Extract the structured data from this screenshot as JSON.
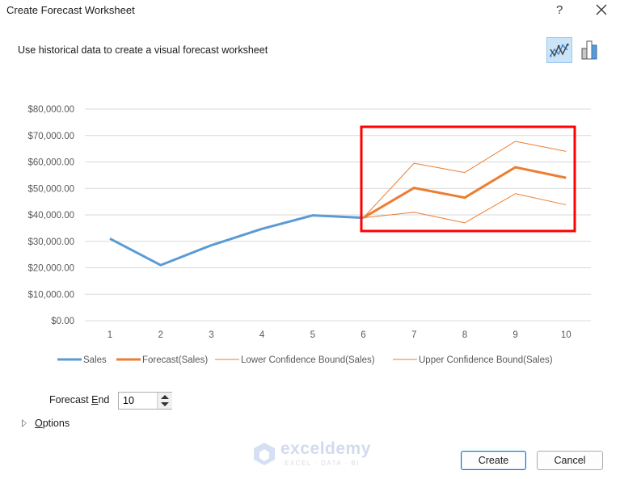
{
  "dialog": {
    "title": "Create Forecast Worksheet",
    "help_label": "?",
    "close_icon": "close-icon",
    "subtitle": "Use historical data to create a visual forecast worksheet",
    "chart_type_buttons": [
      {
        "name": "line-chart",
        "icon": "line-chart-icon",
        "selected": true
      },
      {
        "name": "column-chart",
        "icon": "column-chart-icon",
        "selected": false
      }
    ]
  },
  "forecast_end": {
    "label_pre": "Forecast ",
    "label_accel": "E",
    "label_post": "nd",
    "value": "10"
  },
  "options": {
    "label_accel": "O",
    "label_rest": "ptions"
  },
  "buttons": {
    "create": "Create",
    "cancel": "Cancel"
  },
  "watermark": {
    "name": "exceldemy",
    "tagline": "EXCEL · DATA · BI"
  },
  "highlight_color": "#ff0000",
  "chart_data": {
    "type": "line",
    "title": "",
    "xlabel": "",
    "ylabel": "",
    "x": [
      1,
      2,
      3,
      4,
      5,
      6,
      7,
      8,
      9,
      10
    ],
    "ylim": [
      0,
      80000
    ],
    "yticks": [
      "$0.00",
      "$10,000.00",
      "$20,000.00",
      "$30,000.00",
      "$40,000.00",
      "$50,000.00",
      "$60,000.00",
      "$70,000.00",
      "$80,000.00"
    ],
    "grid": true,
    "legend_position": "bottom",
    "series": [
      {
        "name": "Sales",
        "color": "#5b9bd5",
        "width": 3,
        "values": [
          31000,
          21000,
          28500,
          34700,
          39800,
          38900,
          null,
          null,
          null,
          null
        ]
      },
      {
        "name": "Forecast(Sales)",
        "color": "#ed7d31",
        "width": 3,
        "values": [
          null,
          null,
          null,
          null,
          null,
          38900,
          50200,
          46500,
          58000,
          54000
        ]
      },
      {
        "name": "Lower Confidence Bound(Sales)",
        "color": "#ed7d31",
        "width": 1,
        "values": [
          null,
          null,
          null,
          null,
          null,
          38900,
          41000,
          37000,
          48000,
          43800
        ]
      },
      {
        "name": "Upper Confidence Bound(Sales)",
        "color": "#ed7d31",
        "width": 1,
        "values": [
          null,
          null,
          null,
          null,
          null,
          38900,
          59500,
          56000,
          67800,
          64000
        ]
      }
    ],
    "annotations": [
      {
        "type": "rectangle",
        "color": "#ff0000",
        "around": "forecast region x=6..10"
      }
    ]
  }
}
